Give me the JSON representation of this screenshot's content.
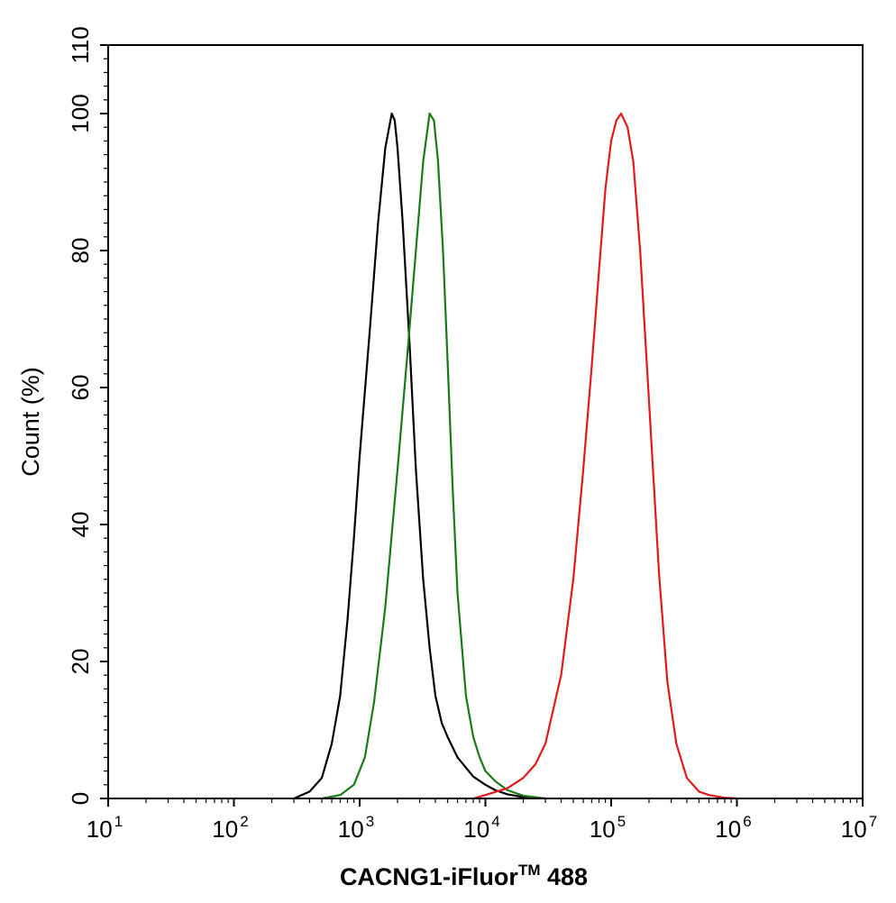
{
  "chart_data": {
    "type": "line",
    "xscale": "log",
    "xlim": [
      10,
      10000000
    ],
    "ylim": [
      0,
      110
    ],
    "xticks": [
      {
        "value": 10,
        "base": "10",
        "exp": "1"
      },
      {
        "value": 100,
        "base": "10",
        "exp": "2"
      },
      {
        "value": 1000,
        "base": "10",
        "exp": "3"
      },
      {
        "value": 10000,
        "base": "10",
        "exp": "4"
      },
      {
        "value": 100000,
        "base": "10",
        "exp": "5"
      },
      {
        "value": 1000000,
        "base": "10",
        "exp": "6"
      },
      {
        "value": 10000000,
        "base": "10",
        "exp": "7"
      }
    ],
    "yticks": [
      0,
      20,
      40,
      60,
      80,
      100,
      110
    ],
    "ylabel": "Count  (%)",
    "xlabel": {
      "text": "CACNG1-iFluor",
      "sup": "TM",
      "suffix": " 488"
    },
    "grid": false,
    "legend": "none",
    "series": [
      {
        "color": "#000000",
        "x": [
          300,
          400,
          500,
          600,
          700,
          800,
          900,
          1000,
          1200,
          1400,
          1600,
          1800,
          1900,
          2000,
          2200,
          2500,
          2800,
          3200,
          3600,
          4000,
          4500,
          5000,
          6000,
          7000,
          8000,
          10000,
          12000,
          15000,
          20000,
          30000
        ],
        "y": [
          0,
          1,
          3,
          8,
          15,
          26,
          38,
          50,
          68,
          84,
          95,
          100,
          99,
          95,
          84,
          66,
          48,
          32,
          22,
          15,
          11,
          9,
          6,
          4.5,
          3.2,
          2,
          1.2,
          0.6,
          0.2,
          0
        ]
      },
      {
        "color": "#1a7a1a",
        "x": [
          500,
          700,
          900,
          1100,
          1300,
          1600,
          2000,
          2400,
          2800,
          3200,
          3600,
          3900,
          4200,
          4600,
          5000,
          5500,
          6000,
          7000,
          8000,
          9000,
          10000,
          12000,
          15000,
          20000,
          30000
        ],
        "y": [
          0,
          0.5,
          2,
          6,
          14,
          28,
          48,
          65,
          80,
          93,
          100,
          99,
          93,
          80,
          64,
          45,
          30,
          15,
          9,
          6,
          4,
          2.5,
          1.2,
          0.4,
          0
        ]
      },
      {
        "color": "#e31a1c",
        "x": [
          8000,
          10000,
          15000,
          20000,
          25000,
          30000,
          40000,
          50000,
          60000,
          70000,
          80000,
          90000,
          100000,
          110000,
          120000,
          135000,
          150000,
          170000,
          200000,
          240000,
          280000,
          330000,
          400000,
          500000,
          600000,
          800000,
          1000000
        ],
        "y": [
          0,
          0.5,
          1.5,
          3,
          5,
          8,
          18,
          32,
          48,
          63,
          77,
          89,
          96,
          99,
          100,
          98,
          93,
          80,
          58,
          33,
          17,
          8,
          3,
          1,
          0.5,
          0.1,
          0
        ]
      }
    ]
  }
}
